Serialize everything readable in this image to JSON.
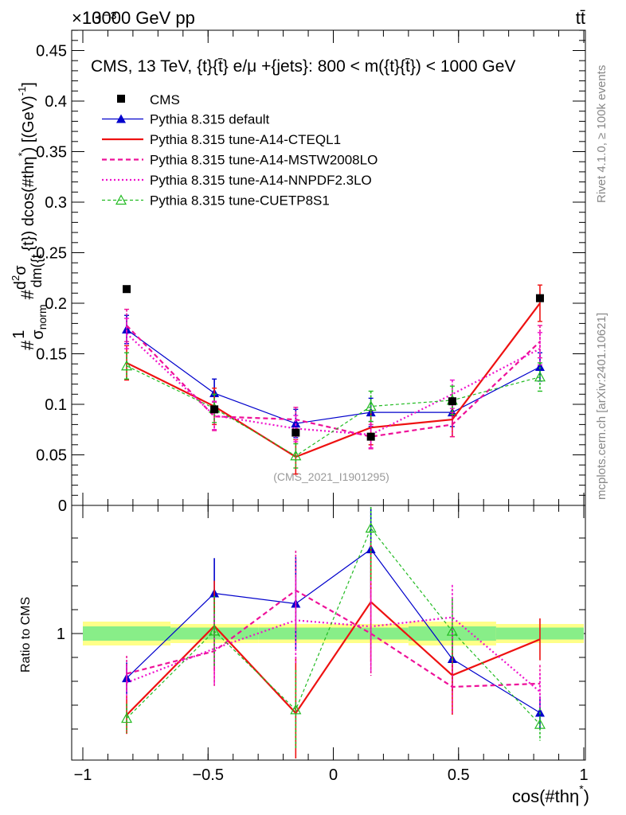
{
  "header": {
    "energy_label": "13000 GeV pp",
    "process_label": "tt̄",
    "exponent_label": "×10⁻³",
    "side_label_rivet": "Rivet 4.1.0, ≥ 100k events",
    "side_label_mcplots": "mcplots.cern.ch [arXiv:2401.10621]"
  },
  "chart_data": {
    "type": "line",
    "title": "CMS, 13 TeV, {t}{t̄} e/μ +{jets}: 800 < m({t}{t̄}) < 1000 GeV",
    "xlabel": "cos(#thη*)",
    "ylabel": "#1/σ_norm #d²σ/dm({t}{t̄}) dcos(#thη*) [(GeV)⁻¹]",
    "ylabel_parts": {
      "hash1": "#",
      "one": "1",
      "sigma": "σ",
      "norm": "norm",
      "hash2": "#",
      "d": "d",
      "two": "2",
      "sigma2": "σ",
      "dm": "dm({t",
      "rest": "{t}) dcos(#thη",
      "star": "*",
      "units": ") [(GeV)",
      "minus1": "-1",
      "units_end": "]"
    },
    "xlabel_parts": {
      "main": "cos(#thη",
      "star": "*",
      "close": ")"
    },
    "watermark": "(CMS_2021_I1901295)",
    "ratio_ylabel": "Ratio to CMS",
    "xlim": [
      -1,
      1
    ],
    "ylim": [
      0,
      0.48
    ],
    "ratio_ylim": [
      0.5,
      1.5
    ],
    "x_ticks": [
      {
        "value": -1,
        "label": "−1"
      },
      {
        "value": -0.5,
        "label": "−0.5"
      },
      {
        "value": 0,
        "label": "0"
      },
      {
        "value": 0.5,
        "label": "0.5"
      },
      {
        "value": 1,
        "label": "1"
      }
    ],
    "y_ticks": [
      {
        "value": 0,
        "label": "0"
      },
      {
        "value": 0.05,
        "label": "0.05"
      },
      {
        "value": 0.1,
        "label": "0.1"
      },
      {
        "value": 0.15,
        "label": "0.15"
      },
      {
        "value": 0.2,
        "label": "0.2"
      },
      {
        "value": 0.25,
        "label": "0.25"
      },
      {
        "value": 0.3,
        "label": "0.3"
      },
      {
        "value": 0.35,
        "label": "0.35"
      },
      {
        "value": 0.4,
        "label": "0.4"
      },
      {
        "value": 0.45,
        "label": "0.45"
      }
    ],
    "ratio_ticks": [
      {
        "value": 1,
        "label": "1"
      }
    ],
    "x": [
      -0.825,
      -0.475,
      -0.15,
      0.15,
      0.475,
      0.825
    ],
    "bin_edges": [
      -1,
      -0.65,
      -0.3,
      0,
      0.3,
      0.65,
      1
    ],
    "data": {
      "name": "CMS",
      "values": [
        0.214,
        0.095,
        0.072,
        0.068,
        0.103,
        0.205
      ],
      "band_low": [
        0.95,
        0.96,
        0.96,
        0.96,
        0.95,
        0.96
      ],
      "band_high": [
        1.05,
        1.04,
        1.04,
        1.04,
        1.05,
        1.04
      ],
      "band_stat_low": [
        0.97,
        0.975,
        0.975,
        0.975,
        0.97,
        0.975
      ],
      "band_stat_high": [
        1.03,
        1.025,
        1.025,
        1.025,
        1.03,
        1.025
      ]
    },
    "series": [
      {
        "name": "Pythia 8.315 default",
        "color": "#0000cc",
        "dash": "",
        "marker": "triangle-filled",
        "width": 1.2,
        "values": [
          0.174,
          0.111,
          0.081,
          0.092,
          0.092,
          0.137
        ],
        "errors": [
          0.014,
          0.014,
          0.014,
          0.014,
          0.014,
          0.014
        ]
      },
      {
        "name": "Pythia 8.315 tune-A14-CTEQL1",
        "color": "#ee1111",
        "dash": "",
        "marker": "none",
        "width": 2.2,
        "values": [
          0.141,
          0.098,
          0.048,
          0.077,
          0.085,
          0.2
        ],
        "errors": [
          0.017,
          0.018,
          0.017,
          0.017,
          0.017,
          0.018
        ]
      },
      {
        "name": "Pythia 8.315 tune-A14-MSTW2008LO",
        "color": "#ee1199",
        "dash": "6,4",
        "marker": "none",
        "width": 2.2,
        "values": [
          0.178,
          0.088,
          0.085,
          0.068,
          0.08,
          0.162
        ],
        "errors": [
          0.016,
          0.014,
          0.012,
          0.012,
          0.012,
          0.016
        ]
      },
      {
        "name": "Pythia 8.315 tune-A14-NNPDF2.3LO",
        "color": "#ee11cc",
        "dash": "2,3",
        "marker": "none",
        "width": 2.2,
        "values": [
          0.17,
          0.089,
          0.076,
          0.07,
          0.11,
          0.155
        ],
        "errors": [
          0.015,
          0.014,
          0.013,
          0.013,
          0.014,
          0.016
        ]
      },
      {
        "name": "Pythia 8.315 tune-CUETP8S1",
        "color": "#22bb22",
        "dash": "4,3",
        "marker": "triangle-open",
        "width": 1.2,
        "values": [
          0.138,
          0.096,
          0.049,
          0.098,
          0.104,
          0.127
        ],
        "errors": [
          0.013,
          0.014,
          0.012,
          0.015,
          0.014,
          0.014
        ]
      }
    ],
    "legend": {
      "position": "top-left",
      "data_label": "CMS"
    }
  }
}
